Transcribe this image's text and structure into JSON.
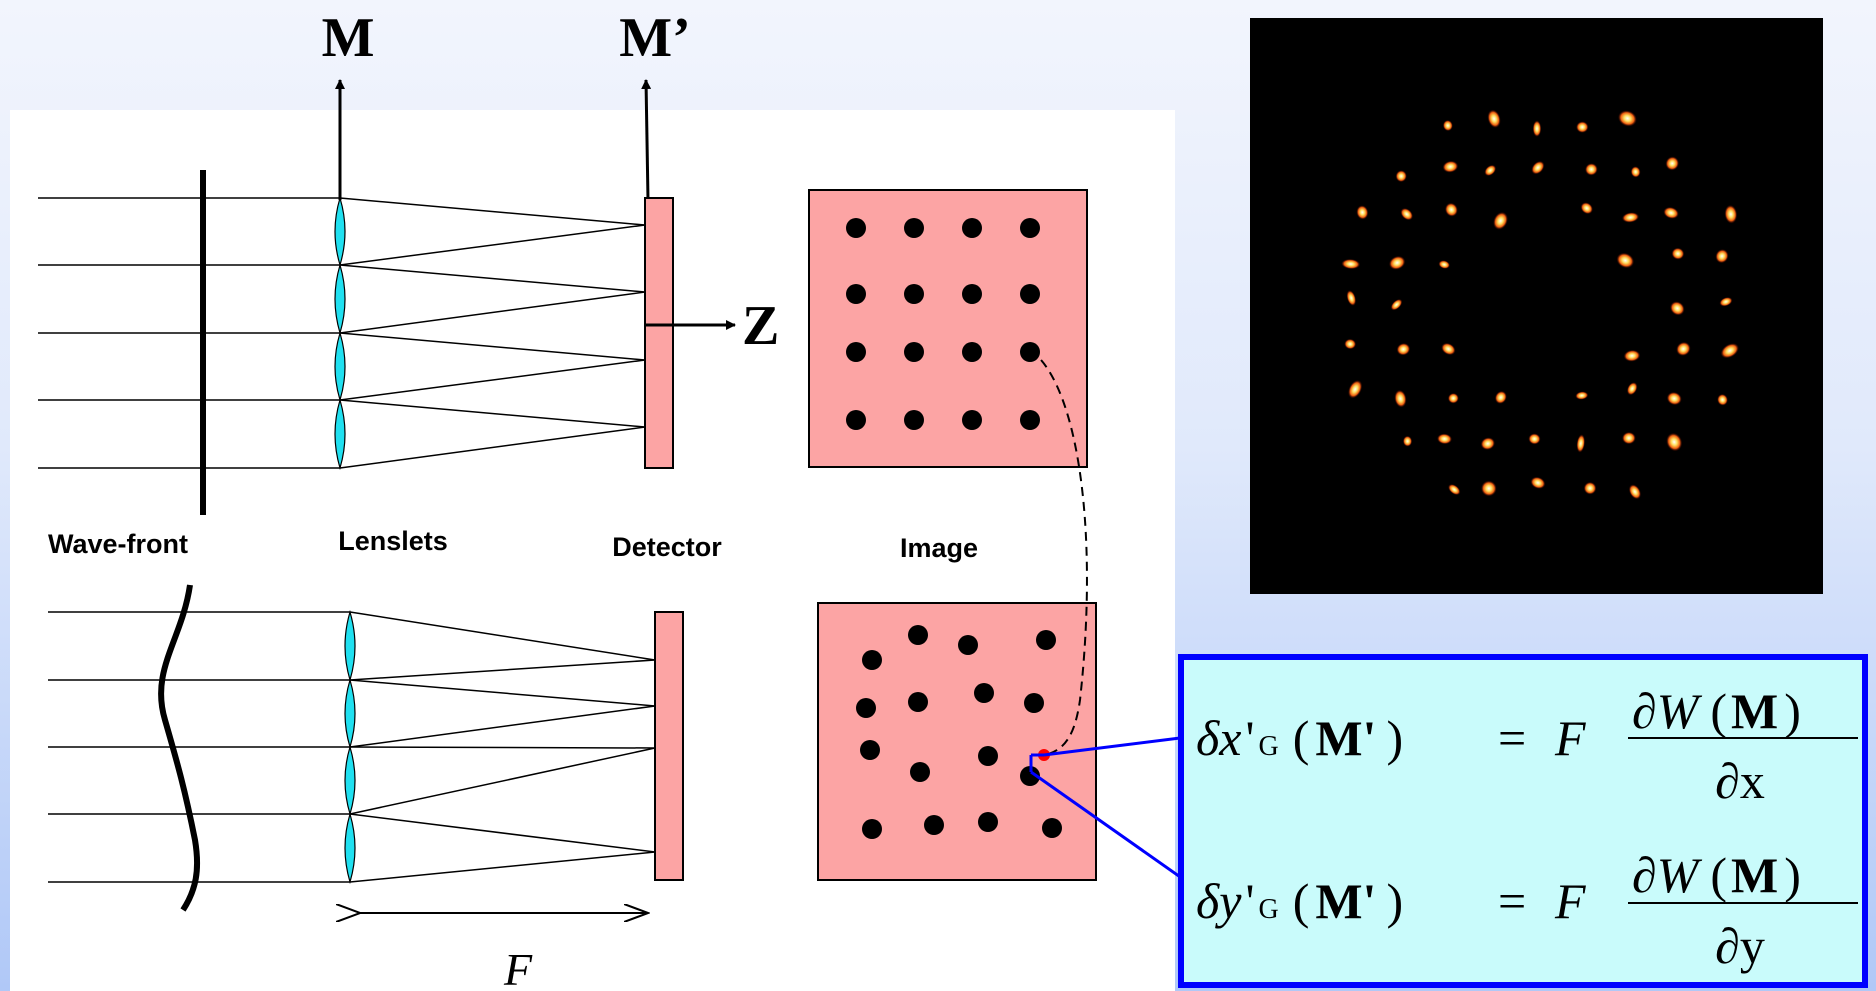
{
  "labels": {
    "top_m": "M",
    "top_m_prime": "M’",
    "z_axis": "Z",
    "wave_front": "Wave-front",
    "lenslets": "Lenslets",
    "detector": "Detector",
    "image": "Image",
    "focal_length": "F"
  },
  "formulas": {
    "x": {
      "delta": "δ",
      "variable": "x",
      "prime": "'",
      "subscript": "G",
      "argument": "M'",
      "equals": "=",
      "factor": "F",
      "numerator_partial": "∂",
      "numerator_function": "W",
      "numerator_argument": "M",
      "denominator": "∂x"
    },
    "y": {
      "delta": "δ",
      "variable": "y",
      "prime": "'",
      "subscript": "G",
      "argument": "M'",
      "equals": "=",
      "factor": "F",
      "numerator_partial": "∂",
      "numerator_function": "W",
      "numerator_argument": "M",
      "denominator": "∂y"
    }
  },
  "colors": {
    "lens": "#20e0f0",
    "detector": "#fca4a4",
    "formula_box_fill": "#c9fbfb",
    "formula_box_border": "#0000ff",
    "connector": "#0000ff",
    "reference_dot": "#ff0000",
    "spot_image_background": "#000000"
  }
}
